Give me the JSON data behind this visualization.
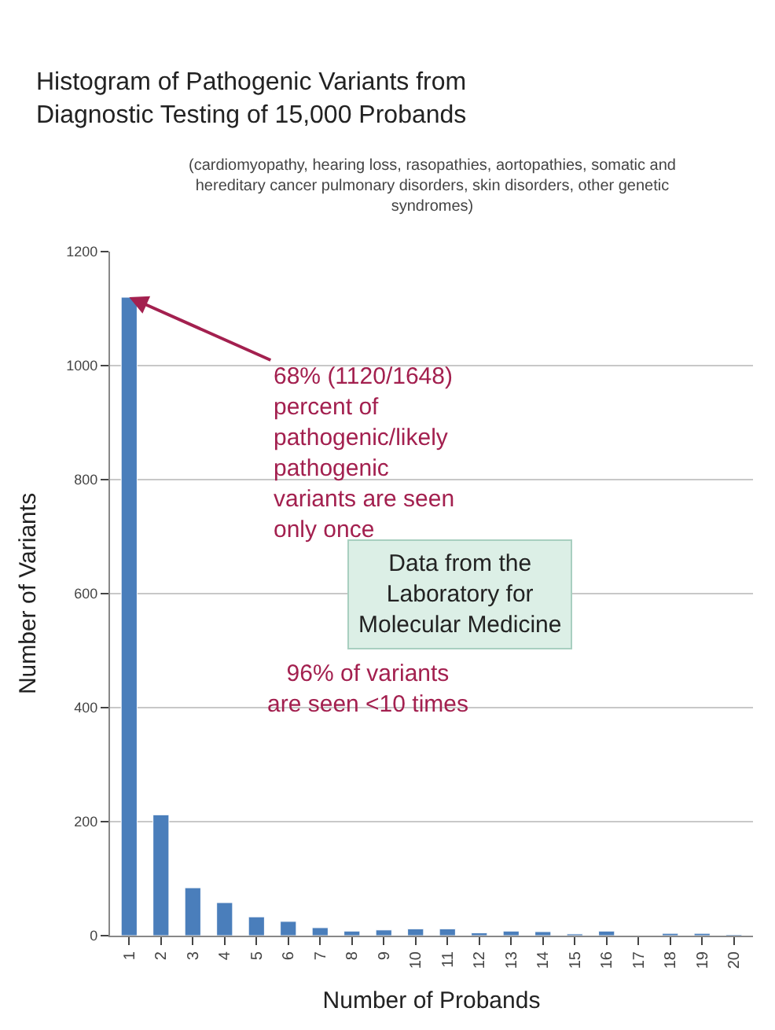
{
  "chart_data": {
    "type": "bar",
    "title": "Histogram of Pathogenic Variants from Diagnostic Testing of 15,000 Probands",
    "subtitle": "(cardiomyopathy, hearing loss, rasopathies, aortopathies, somatic and hereditary cancer pulmonary disorders, skin disorders, other genetic syndromes)",
    "xlabel": "Number of Probands",
    "ylabel": "Number of Variants",
    "categories": [
      "1",
      "2",
      "3",
      "4",
      "5",
      "6",
      "7",
      "8",
      "9",
      "10",
      "11",
      "12",
      "13",
      "14",
      "15",
      "16",
      "17",
      "18",
      "19",
      "20"
    ],
    "values": [
      1120,
      212,
      84,
      58,
      33,
      25,
      14,
      8,
      10,
      12,
      12,
      5,
      8,
      7,
      3,
      8,
      null,
      4,
      4,
      2
    ],
    "color": "#4a7ebb",
    "ylim": [
      0,
      1200
    ],
    "yticks": [
      0,
      200,
      400,
      600,
      800,
      1000,
      1200
    ],
    "grid": "y",
    "annotations": [
      {
        "text": "68% (1120/1648) percent of pathogenic/likely pathogenic variants are seen only once",
        "x": "1",
        "y": 1120
      },
      "96% of variants are seen <10 times",
      "Data from the Laboratory for Molecular Medicine"
    ]
  }
}
